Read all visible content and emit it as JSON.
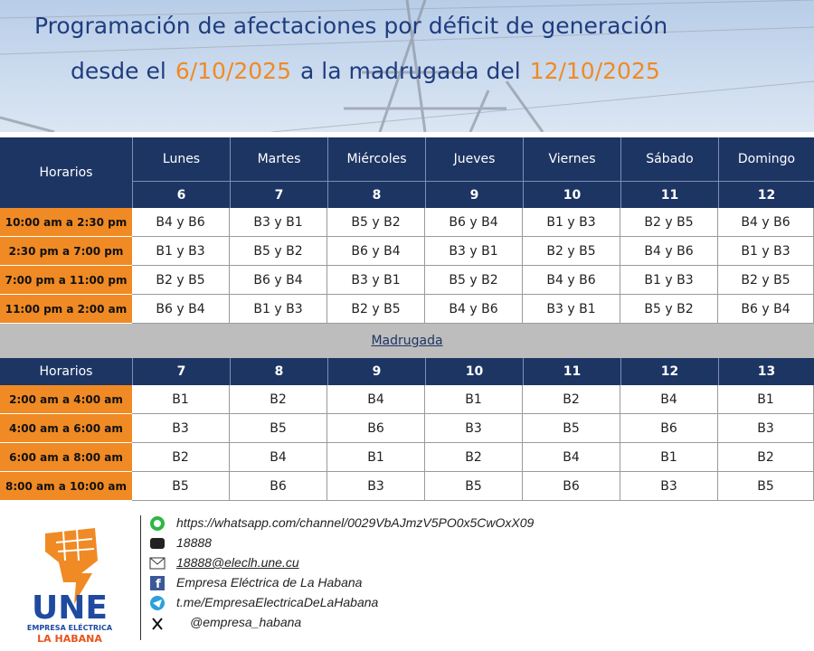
{
  "header": {
    "title": "Programación de afectaciones por déficit de generación",
    "subtitle_prefix": "desde el",
    "start_date": "6/10/2025",
    "subtitle_middle": "a la madrugada del",
    "end_date": "12/10/2025"
  },
  "day_table": {
    "header": "Horarios",
    "days": [
      "Lunes",
      "Martes",
      "Miércoles",
      "Jueves",
      "Viernes",
      "Sábado",
      "Domingo"
    ],
    "dates": [
      "6",
      "7",
      "8",
      "9",
      "10",
      "11",
      "12"
    ],
    "rows": [
      {
        "time": "10:00 am a 2:30 pm",
        "cells": [
          "B4 y B6",
          "B3 y B1",
          "B5 y B2",
          "B6 y B4",
          "B1 y B3",
          "B2 y B5",
          "B4 y B6"
        ]
      },
      {
        "time": "2:30 pm a 7:00 pm",
        "cells": [
          "B1 y B3",
          "B5 y B2",
          "B6 y B4",
          "B3 y B1",
          "B2 y B5",
          "B4 y B6",
          "B1 y B3"
        ]
      },
      {
        "time": "7:00 pm a 11:00 pm",
        "cells": [
          "B2 y B5",
          "B6 y B4",
          "B3 y B1",
          "B5 y B2",
          "B4 y B6",
          "B1 y B3",
          "B2 y B5"
        ]
      },
      {
        "time": "11:00 pm a 2:00 am",
        "cells": [
          "B6 y B4",
          "B1 y B3",
          "B2 y B5",
          "B4 y B6",
          "B3 y B1",
          "B5 y B2",
          "B6 y B4"
        ]
      }
    ]
  },
  "section_label": "Madrugada",
  "dawn_table": {
    "header": "Horarios",
    "dates": [
      "7",
      "8",
      "9",
      "10",
      "11",
      "12",
      "13"
    ],
    "rows": [
      {
        "time": "2:00 am a 4:00 am",
        "cells": [
          "B1",
          "B2",
          "B4",
          "B1",
          "B2",
          "B4",
          "B1"
        ]
      },
      {
        "time": "4:00 am a 6:00 am",
        "cells": [
          "B3",
          "B5",
          "B6",
          "B3",
          "B5",
          "B6",
          "B3"
        ]
      },
      {
        "time": "6:00 am a 8:00 am",
        "cells": [
          "B2",
          "B4",
          "B1",
          "B2",
          "B4",
          "B1",
          "B2"
        ]
      },
      {
        "time": "8:00 am a 10:00 am",
        "cells": [
          "B5",
          "B6",
          "B3",
          "B5",
          "B6",
          "B3",
          "B5"
        ]
      }
    ]
  },
  "contacts": [
    "https://whatsapp.com/channel/0029VbAJmzV5PO0x5CwOxX09",
    "18888",
    "18888@eleclh.une.cu",
    "Empresa Eléctrica de La Habana",
    "t.me/EmpresaElectricaDeLaHabana",
    "@empresa_habana"
  ],
  "logo": {
    "name": "UNE",
    "company": "EMPRESA ELÉCTRICA",
    "city": "LA HABANA"
  }
}
